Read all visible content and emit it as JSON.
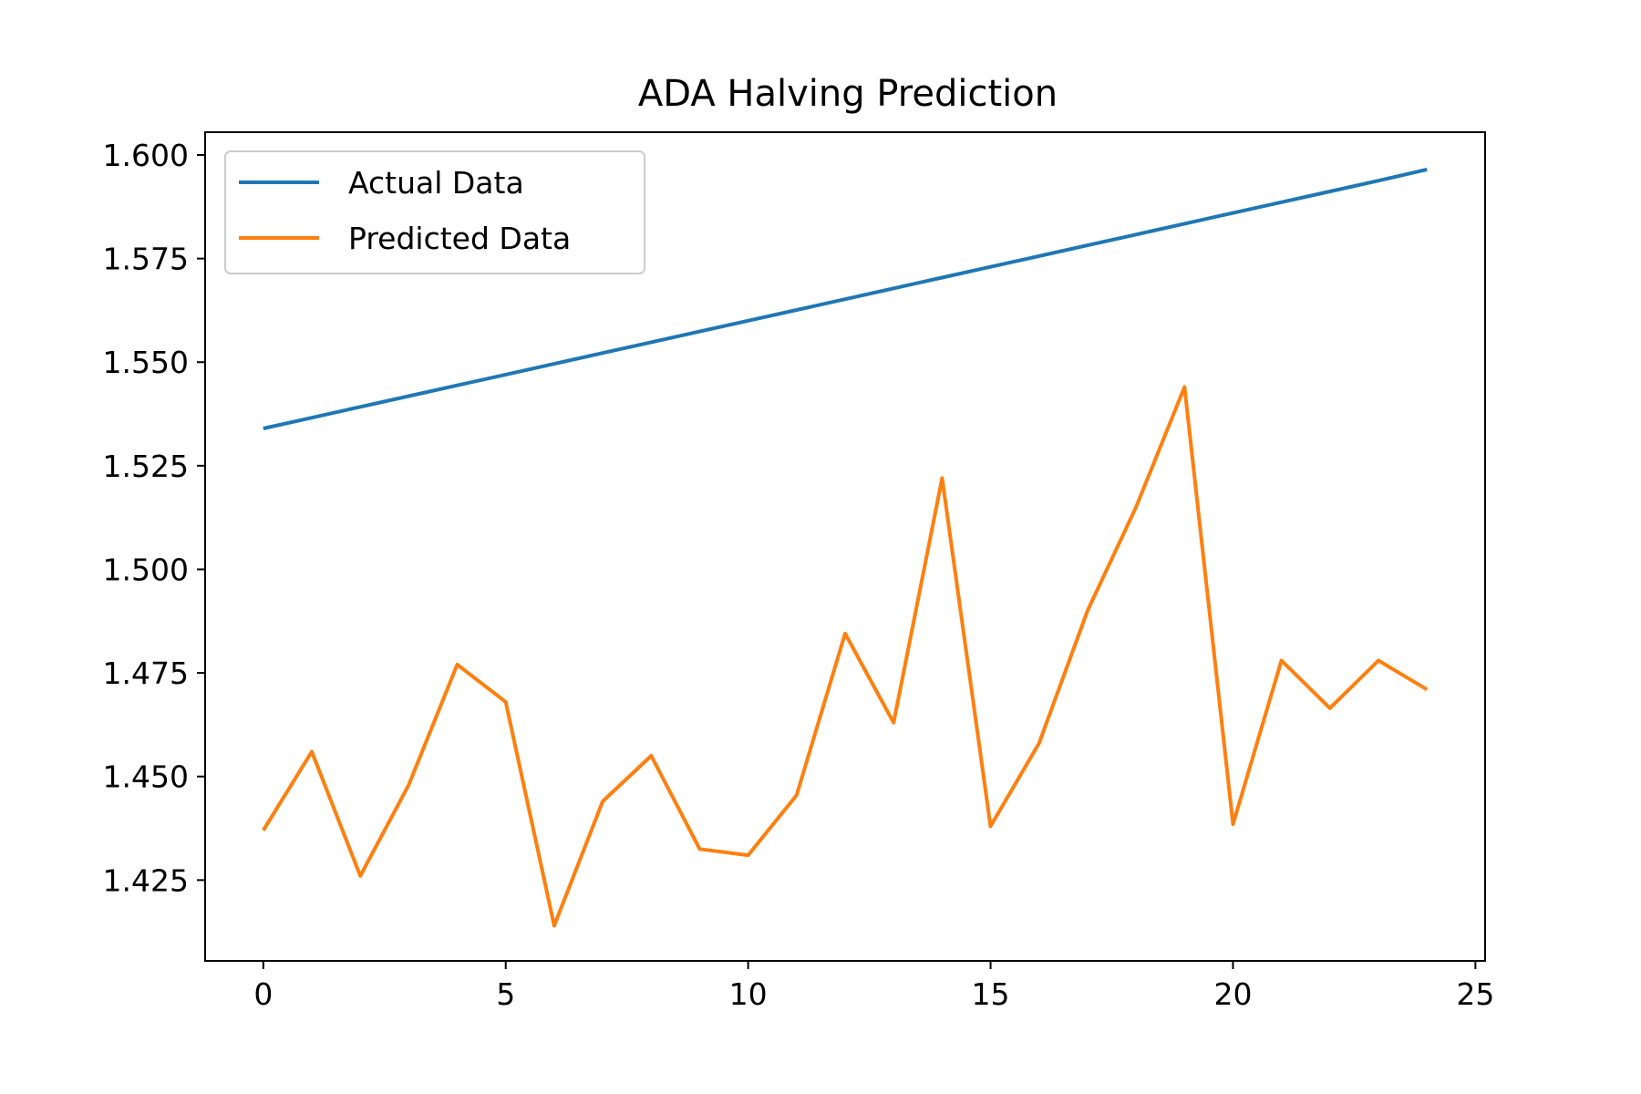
{
  "chart_data": {
    "type": "line",
    "title": "ADA Halving Prediction",
    "xlabel": "",
    "ylabel": "",
    "xlim": [
      -1.2,
      25.2
    ],
    "ylim": [
      1.4055,
      1.6055
    ],
    "x_ticks": [
      0,
      5,
      10,
      15,
      20,
      25
    ],
    "x_tick_labels": [
      "0",
      "5",
      "10",
      "15",
      "20",
      "25"
    ],
    "y_ticks": [
      1.425,
      1.45,
      1.475,
      1.5,
      1.525,
      1.55,
      1.575,
      1.6
    ],
    "y_tick_labels": [
      "1.425",
      "1.450",
      "1.475",
      "1.500",
      "1.525",
      "1.550",
      "1.575",
      "1.600"
    ],
    "grid": false,
    "legend_position": "upper-left",
    "x": [
      0,
      1,
      2,
      3,
      4,
      5,
      6,
      7,
      8,
      9,
      10,
      11,
      12,
      13,
      14,
      15,
      16,
      17,
      18,
      19,
      20,
      21,
      22,
      23,
      24
    ],
    "series": [
      {
        "name": "Actual Data",
        "color": "#1f77b4",
        "values": [
          1.534,
          1.5366,
          1.5392,
          1.5418,
          1.5444,
          1.547,
          1.5496,
          1.5522,
          1.5548,
          1.5574,
          1.56,
          1.5626,
          1.5652,
          1.5678,
          1.5704,
          1.573,
          1.5756,
          1.5782,
          1.5808,
          1.5834,
          1.586,
          1.5886,
          1.5912,
          1.5938,
          1.5965
        ]
      },
      {
        "name": "Predicted Data",
        "color": "#ff7f0e",
        "values": [
          1.437,
          1.456,
          1.426,
          1.448,
          1.477,
          1.468,
          1.414,
          1.444,
          1.455,
          1.4325,
          1.431,
          1.4455,
          1.4845,
          1.463,
          1.522,
          1.438,
          1.458,
          1.49,
          1.515,
          1.544,
          1.4385,
          1.478,
          1.4665,
          1.478,
          1.471
        ]
      }
    ]
  }
}
